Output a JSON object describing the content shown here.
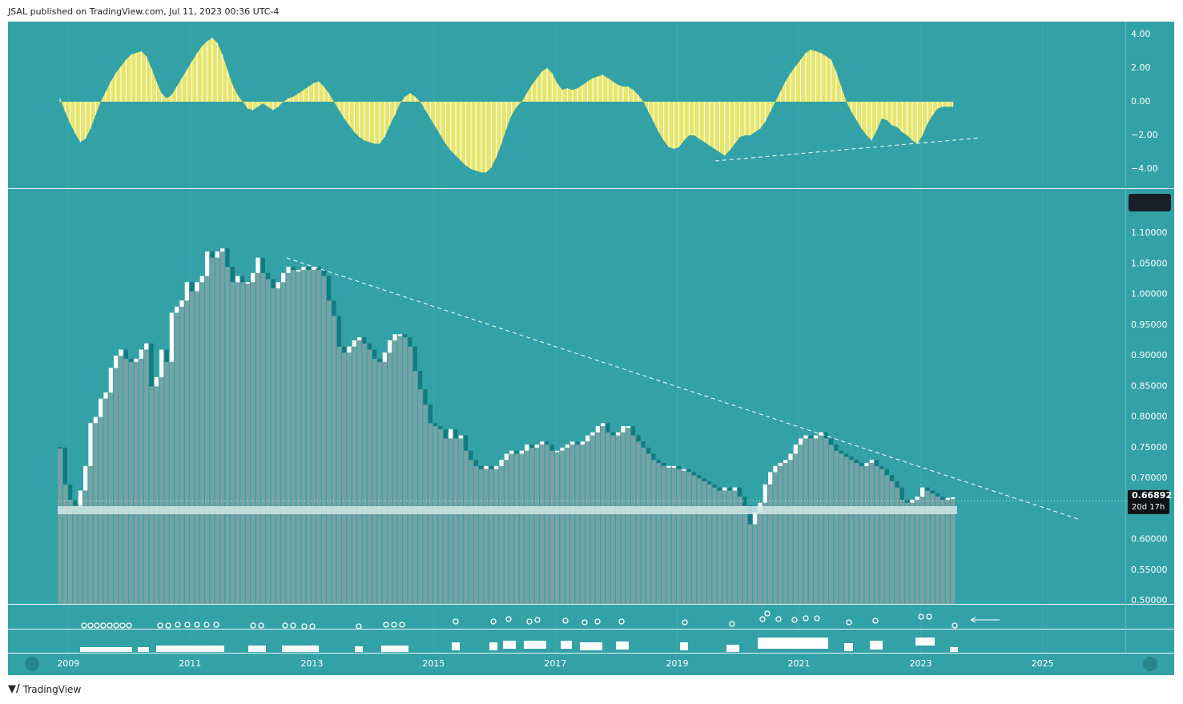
{
  "header": {
    "text": "JSAL published on TradingView.com, Jul 11, 2023 00:36 UTC-4"
  },
  "footer": {
    "brand": "TradingView"
  },
  "chart_data": [
    {
      "type": "histogram-area",
      "color": "#e6e66e",
      "ylim": [
        -5.14,
        4.76
      ],
      "yticks": [
        {
          "value": 4,
          "label": "4.00"
        },
        {
          "value": 2,
          "label": "2.00"
        },
        {
          "value": 0,
          "label": "0.00"
        },
        {
          "value": -2,
          "label": "−2.00"
        },
        {
          "value": -4,
          "label": "−4.00"
        }
      ],
      "values": [
        0.2,
        -0.6,
        -1.3,
        -1.9,
        -2.4,
        -2.2,
        -1.6,
        -0.8,
        0.0,
        0.6,
        1.2,
        1.7,
        2.1,
        2.5,
        2.8,
        2.9,
        3.0,
        2.7,
        2.0,
        1.2,
        0.5,
        0.2,
        0.4,
        0.9,
        1.4,
        1.9,
        2.4,
        2.9,
        3.3,
        3.6,
        3.8,
        3.5,
        2.8,
        1.9,
        1.0,
        0.4,
        0.0,
        -0.4,
        -0.5,
        -0.3,
        -0.1,
        -0.3,
        -0.5,
        -0.3,
        0.0,
        0.2,
        0.3,
        0.5,
        0.7,
        0.9,
        1.1,
        1.2,
        0.9,
        0.5,
        0.0,
        -0.5,
        -1.0,
        -1.4,
        -1.8,
        -2.1,
        -2.3,
        -2.4,
        -2.5,
        -2.5,
        -2.1,
        -1.4,
        -0.8,
        -0.1,
        0.3,
        0.5,
        0.3,
        0.0,
        -0.5,
        -1.0,
        -1.5,
        -2.0,
        -2.5,
        -2.9,
        -3.2,
        -3.5,
        -3.8,
        -4.0,
        -4.1,
        -4.2,
        -4.2,
        -3.9,
        -3.3,
        -2.5,
        -1.6,
        -0.8,
        -0.3,
        0.0,
        0.5,
        1.0,
        1.4,
        1.8,
        2.0,
        1.7,
        1.1,
        0.7,
        0.8,
        0.7,
        0.8,
        1.0,
        1.2,
        1.4,
        1.5,
        1.6,
        1.4,
        1.2,
        1.0,
        0.9,
        0.9,
        0.7,
        0.4,
        0.0,
        -0.6,
        -1.2,
        -1.8,
        -2.3,
        -2.7,
        -2.8,
        -2.7,
        -2.3,
        -2.0,
        -2.0,
        -2.2,
        -2.4,
        -2.6,
        -2.8,
        -3.0,
        -3.2,
        -2.9,
        -2.5,
        -2.1,
        -2.0,
        -2.0,
        -1.8,
        -1.6,
        -1.2,
        -0.6,
        0.0,
        0.6,
        1.2,
        1.7,
        2.1,
        2.5,
        2.9,
        3.1,
        3.0,
        2.9,
        2.7,
        2.5,
        1.8,
        0.9,
        0.0,
        -0.6,
        -1.1,
        -1.6,
        -2.0,
        -2.3,
        -1.7,
        -1.0,
        -1.1,
        -1.4,
        -1.5,
        -1.8,
        -2.0,
        -2.3,
        -2.5,
        -2.0,
        -1.3,
        -0.8,
        -0.4,
        -0.3,
        -0.3,
        -0.3
      ]
    },
    {
      "type": "candlestick",
      "up_color": "#ffffff",
      "down_color": "#137a80",
      "column_color": "#7ea2a4",
      "ylim": [
        0.495,
        1.172
      ],
      "yticks": [
        {
          "value": 1.1,
          "label": "1.10000"
        },
        {
          "value": 1.05,
          "label": "1.05000"
        },
        {
          "value": 1.0,
          "label": "1.00000"
        },
        {
          "value": 0.95,
          "label": "0.95000"
        },
        {
          "value": 0.9,
          "label": "0.90000"
        },
        {
          "value": 0.85,
          "label": "0.85000"
        },
        {
          "value": 0.8,
          "label": "0.80000"
        },
        {
          "value": 0.75,
          "label": "0.75000"
        },
        {
          "value": 0.7,
          "label": "0.70000"
        },
        {
          "value": 0.65,
          "label": "0.65000"
        },
        {
          "value": 0.6,
          "label": "0.60000"
        },
        {
          "value": 0.55,
          "label": "0.55000"
        },
        {
          "value": 0.5,
          "label": "0.50000"
        }
      ],
      "xlim": [
        2008.01,
        2026.36
      ],
      "xticks": [
        2009,
        2011,
        2013,
        2015,
        2017,
        2019,
        2021,
        2023,
        2025
      ],
      "last_price": {
        "value": 0.66892,
        "label": "0.66892",
        "countdown": "20d 17h"
      },
      "values": [
        0.75,
        0.69,
        0.665,
        0.655,
        0.68,
        0.72,
        0.79,
        0.8,
        0.83,
        0.84,
        0.88,
        0.9,
        0.91,
        0.895,
        0.89,
        0.895,
        0.91,
        0.92,
        0.85,
        0.865,
        0.91,
        0.89,
        0.97,
        0.98,
        0.99,
        1.02,
        1.005,
        1.02,
        1.03,
        1.07,
        1.06,
        1.07,
        1.075,
        1.045,
        1.02,
        1.03,
        1.02,
        1.02,
        1.035,
        1.06,
        1.035,
        1.025,
        1.01,
        1.02,
        1.035,
        1.045,
        1.04,
        1.04,
        1.045,
        1.04,
        1.045,
        1.04,
        1.03,
        0.99,
        0.965,
        0.915,
        0.905,
        0.915,
        0.925,
        0.93,
        0.92,
        0.91,
        0.895,
        0.89,
        0.905,
        0.925,
        0.935,
        0.935,
        0.93,
        0.915,
        0.875,
        0.845,
        0.82,
        0.79,
        0.785,
        0.78,
        0.765,
        0.78,
        0.765,
        0.77,
        0.745,
        0.73,
        0.72,
        0.715,
        0.72,
        0.715,
        0.72,
        0.73,
        0.74,
        0.745,
        0.74,
        0.745,
        0.755,
        0.75,
        0.755,
        0.76,
        0.755,
        0.745,
        0.745,
        0.75,
        0.755,
        0.76,
        0.755,
        0.76,
        0.77,
        0.775,
        0.785,
        0.79,
        0.775,
        0.77,
        0.775,
        0.785,
        0.785,
        0.77,
        0.76,
        0.75,
        0.74,
        0.73,
        0.725,
        0.72,
        0.72,
        0.72,
        0.715,
        0.715,
        0.71,
        0.705,
        0.7,
        0.695,
        0.69,
        0.685,
        0.68,
        0.685,
        0.68,
        0.685,
        0.67,
        0.655,
        0.625,
        0.645,
        0.66,
        0.69,
        0.71,
        0.72,
        0.725,
        0.73,
        0.74,
        0.755,
        0.765,
        0.77,
        0.765,
        0.77,
        0.775,
        0.765,
        0.755,
        0.745,
        0.74,
        0.735,
        0.73,
        0.725,
        0.72,
        0.725,
        0.73,
        0.72,
        0.715,
        0.705,
        0.695,
        0.685,
        0.665,
        0.66,
        0.665,
        0.67,
        0.685,
        0.68,
        0.675,
        0.67,
        0.665,
        0.668,
        0.66892
      ]
    }
  ]
}
